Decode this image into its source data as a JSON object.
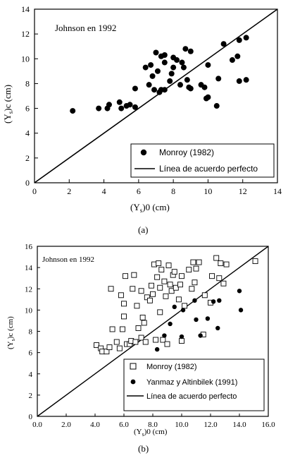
{
  "chart_data": [
    {
      "type": "scatter",
      "panel_label": "(a)",
      "annotation": "Johnson en 1992",
      "xlabel": "(Y",
      "xlabel_sub": "s",
      "xlabel_tail": ")0 (cm)",
      "ylabel": "(Y",
      "ylabel_sub": "s",
      "ylabel_tail": ")c (cm)",
      "xlim": [
        0,
        14
      ],
      "ylim": [
        0,
        14
      ],
      "xticks": [
        "0",
        "2",
        "4",
        "6",
        "8",
        "10",
        "12",
        "14"
      ],
      "yticks": [
        "0",
        "2",
        "4",
        "6",
        "8",
        "10",
        "12",
        "14"
      ],
      "legend_position": "bottom-right",
      "series": [
        {
          "name": "Monroy (1982)",
          "marker": "filled-circle",
          "points": [
            [
              2.2,
              5.8
            ],
            [
              3.7,
              6.0
            ],
            [
              4.2,
              6.0
            ],
            [
              4.3,
              6.3
            ],
            [
              4.9,
              6.5
            ],
            [
              5.0,
              6.0
            ],
            [
              5.3,
              6.2
            ],
            [
              5.5,
              6.3
            ],
            [
              5.8,
              6.1
            ],
            [
              5.8,
              7.6
            ],
            [
              6.4,
              9.3
            ],
            [
              6.6,
              7.9
            ],
            [
              6.7,
              9.5
            ],
            [
              6.8,
              8.6
            ],
            [
              6.9,
              7.5
            ],
            [
              7.0,
              10.5
            ],
            [
              7.1,
              9.0
            ],
            [
              7.2,
              7.3
            ],
            [
              7.3,
              7.5
            ],
            [
              7.3,
              10.2
            ],
            [
              7.5,
              10.3
            ],
            [
              7.5,
              9.7
            ],
            [
              7.5,
              7.5
            ],
            [
              7.8,
              8.2
            ],
            [
              7.9,
              8.8
            ],
            [
              8.0,
              10.1
            ],
            [
              8.0,
              9.3
            ],
            [
              8.2,
              9.9
            ],
            [
              8.4,
              7.9
            ],
            [
              8.5,
              9.7
            ],
            [
              8.6,
              9.3
            ],
            [
              8.7,
              10.8
            ],
            [
              8.8,
              8.3
            ],
            [
              8.9,
              7.7
            ],
            [
              9.0,
              7.6
            ],
            [
              9.0,
              10.6
            ],
            [
              9.6,
              7.9
            ],
            [
              9.8,
              7.7
            ],
            [
              9.9,
              6.8
            ],
            [
              10.0,
              6.9
            ],
            [
              10.0,
              9.5
            ],
            [
              10.5,
              6.2
            ],
            [
              10.6,
              8.4
            ],
            [
              10.9,
              11.2
            ],
            [
              11.4,
              9.9
            ],
            [
              11.7,
              10.2
            ],
            [
              11.8,
              8.2
            ],
            [
              11.8,
              11.5
            ],
            [
              12.2,
              11.7
            ],
            [
              12.2,
              8.3
            ]
          ]
        },
        {
          "name": "Línea de acuerdo perfecto",
          "style": "line",
          "points": [
            [
              0,
              0
            ],
            [
              14,
              14
            ]
          ]
        }
      ]
    },
    {
      "type": "scatter",
      "panel_label": "(b)",
      "annotation": "Johnson en 1992",
      "xlabel": "(Y",
      "xlabel_sub": "s",
      "xlabel_tail": ")0 (cm)",
      "ylabel": "(Y",
      "ylabel_sub": "s",
      "ylabel_tail": ")c (cm)",
      "xlim": [
        0,
        16
      ],
      "ylim": [
        0,
        16
      ],
      "xticks": [
        "0.0",
        "2.0",
        "4.0",
        "6.0",
        "8.0",
        "10.0",
        "12.0",
        "14.0",
        "16.0"
      ],
      "yticks": [
        "0",
        "2",
        "4",
        "6",
        "8",
        "10",
        "12",
        "14",
        "16"
      ],
      "legend_position": "bottom-right",
      "series": [
        {
          "name": "Monroy (1982)",
          "marker": "open-square",
          "points": [
            [
              4.1,
              6.7
            ],
            [
              4.4,
              6.4
            ],
            [
              4.5,
              6.1
            ],
            [
              4.8,
              6.1
            ],
            [
              5.0,
              6.5
            ],
            [
              5.1,
              12.0
            ],
            [
              5.2,
              8.2
            ],
            [
              5.5,
              7.0
            ],
            [
              5.7,
              6.4
            ],
            [
              5.8,
              11.4
            ],
            [
              5.9,
              8.2
            ],
            [
              6.0,
              9.4
            ],
            [
              6.0,
              10.6
            ],
            [
              6.1,
              13.2
            ],
            [
              6.2,
              6.8
            ],
            [
              6.4,
              6.8
            ],
            [
              6.5,
              7.1
            ],
            [
              6.6,
              12.0
            ],
            [
              6.7,
              13.3
            ],
            [
              6.8,
              7.0
            ],
            [
              6.9,
              10.4
            ],
            [
              7.0,
              8.3
            ],
            [
              7.2,
              7.4
            ],
            [
              7.2,
              11.8
            ],
            [
              7.3,
              9.3
            ],
            [
              7.4,
              8.8
            ],
            [
              7.5,
              7.0
            ],
            [
              7.6,
              11.2
            ],
            [
              7.8,
              10.9
            ],
            [
              7.9,
              12.3
            ],
            [
              8.0,
              11.5
            ],
            [
              8.1,
              14.3
            ],
            [
              8.2,
              7.2
            ],
            [
              8.3,
              13.1
            ],
            [
              8.4,
              14.4
            ],
            [
              8.5,
              9.8
            ],
            [
              8.5,
              12.1
            ],
            [
              8.6,
              13.8
            ],
            [
              8.7,
              7.2
            ],
            [
              8.8,
              12.7
            ],
            [
              8.9,
              11.3
            ],
            [
              9.0,
              6.8
            ],
            [
              9.1,
              14.2
            ],
            [
              9.2,
              12.4
            ],
            [
              9.3,
              11.8
            ],
            [
              9.4,
              13.3
            ],
            [
              9.5,
              13.6
            ],
            [
              9.6,
              12.1
            ],
            [
              9.8,
              11.0
            ],
            [
              9.9,
              12.4
            ],
            [
              10.0,
              13.2
            ],
            [
              10.0,
              7.1
            ],
            [
              10.2,
              10.4
            ],
            [
              10.5,
              13.8
            ],
            [
              10.7,
              12.0
            ],
            [
              10.8,
              14.5
            ],
            [
              10.9,
              12.6
            ],
            [
              11.0,
              13.9
            ],
            [
              11.2,
              14.5
            ],
            [
              11.5,
              7.7
            ],
            [
              11.6,
              11.4
            ],
            [
              12.0,
              10.7
            ],
            [
              12.1,
              13.2
            ],
            [
              12.4,
              14.9
            ],
            [
              12.6,
              13.0
            ],
            [
              12.7,
              14.4
            ],
            [
              12.9,
              12.5
            ],
            [
              13.1,
              14.3
            ],
            [
              15.1,
              14.6
            ]
          ]
        },
        {
          "name": "Yanmaz y Altinbilek (1991)",
          "marker": "filled-circle",
          "points": [
            [
              8.3,
              6.3
            ],
            [
              8.8,
              7.6
            ],
            [
              9.2,
              8.7
            ],
            [
              9.5,
              10.3
            ],
            [
              10.0,
              7.5
            ],
            [
              10.1,
              10.0
            ],
            [
              10.9,
              10.9
            ],
            [
              11.0,
              9.1
            ],
            [
              11.3,
              7.6
            ],
            [
              11.8,
              9.2
            ],
            [
              12.2,
              10.8
            ],
            [
              12.5,
              8.3
            ],
            [
              12.6,
              10.9
            ],
            [
              14.0,
              11.8
            ],
            [
              14.1,
              10.0
            ]
          ]
        },
        {
          "name": "Línea de acuerdo perfecto",
          "style": "line",
          "points": [
            [
              0,
              0
            ],
            [
              16,
              16
            ]
          ]
        }
      ]
    }
  ]
}
